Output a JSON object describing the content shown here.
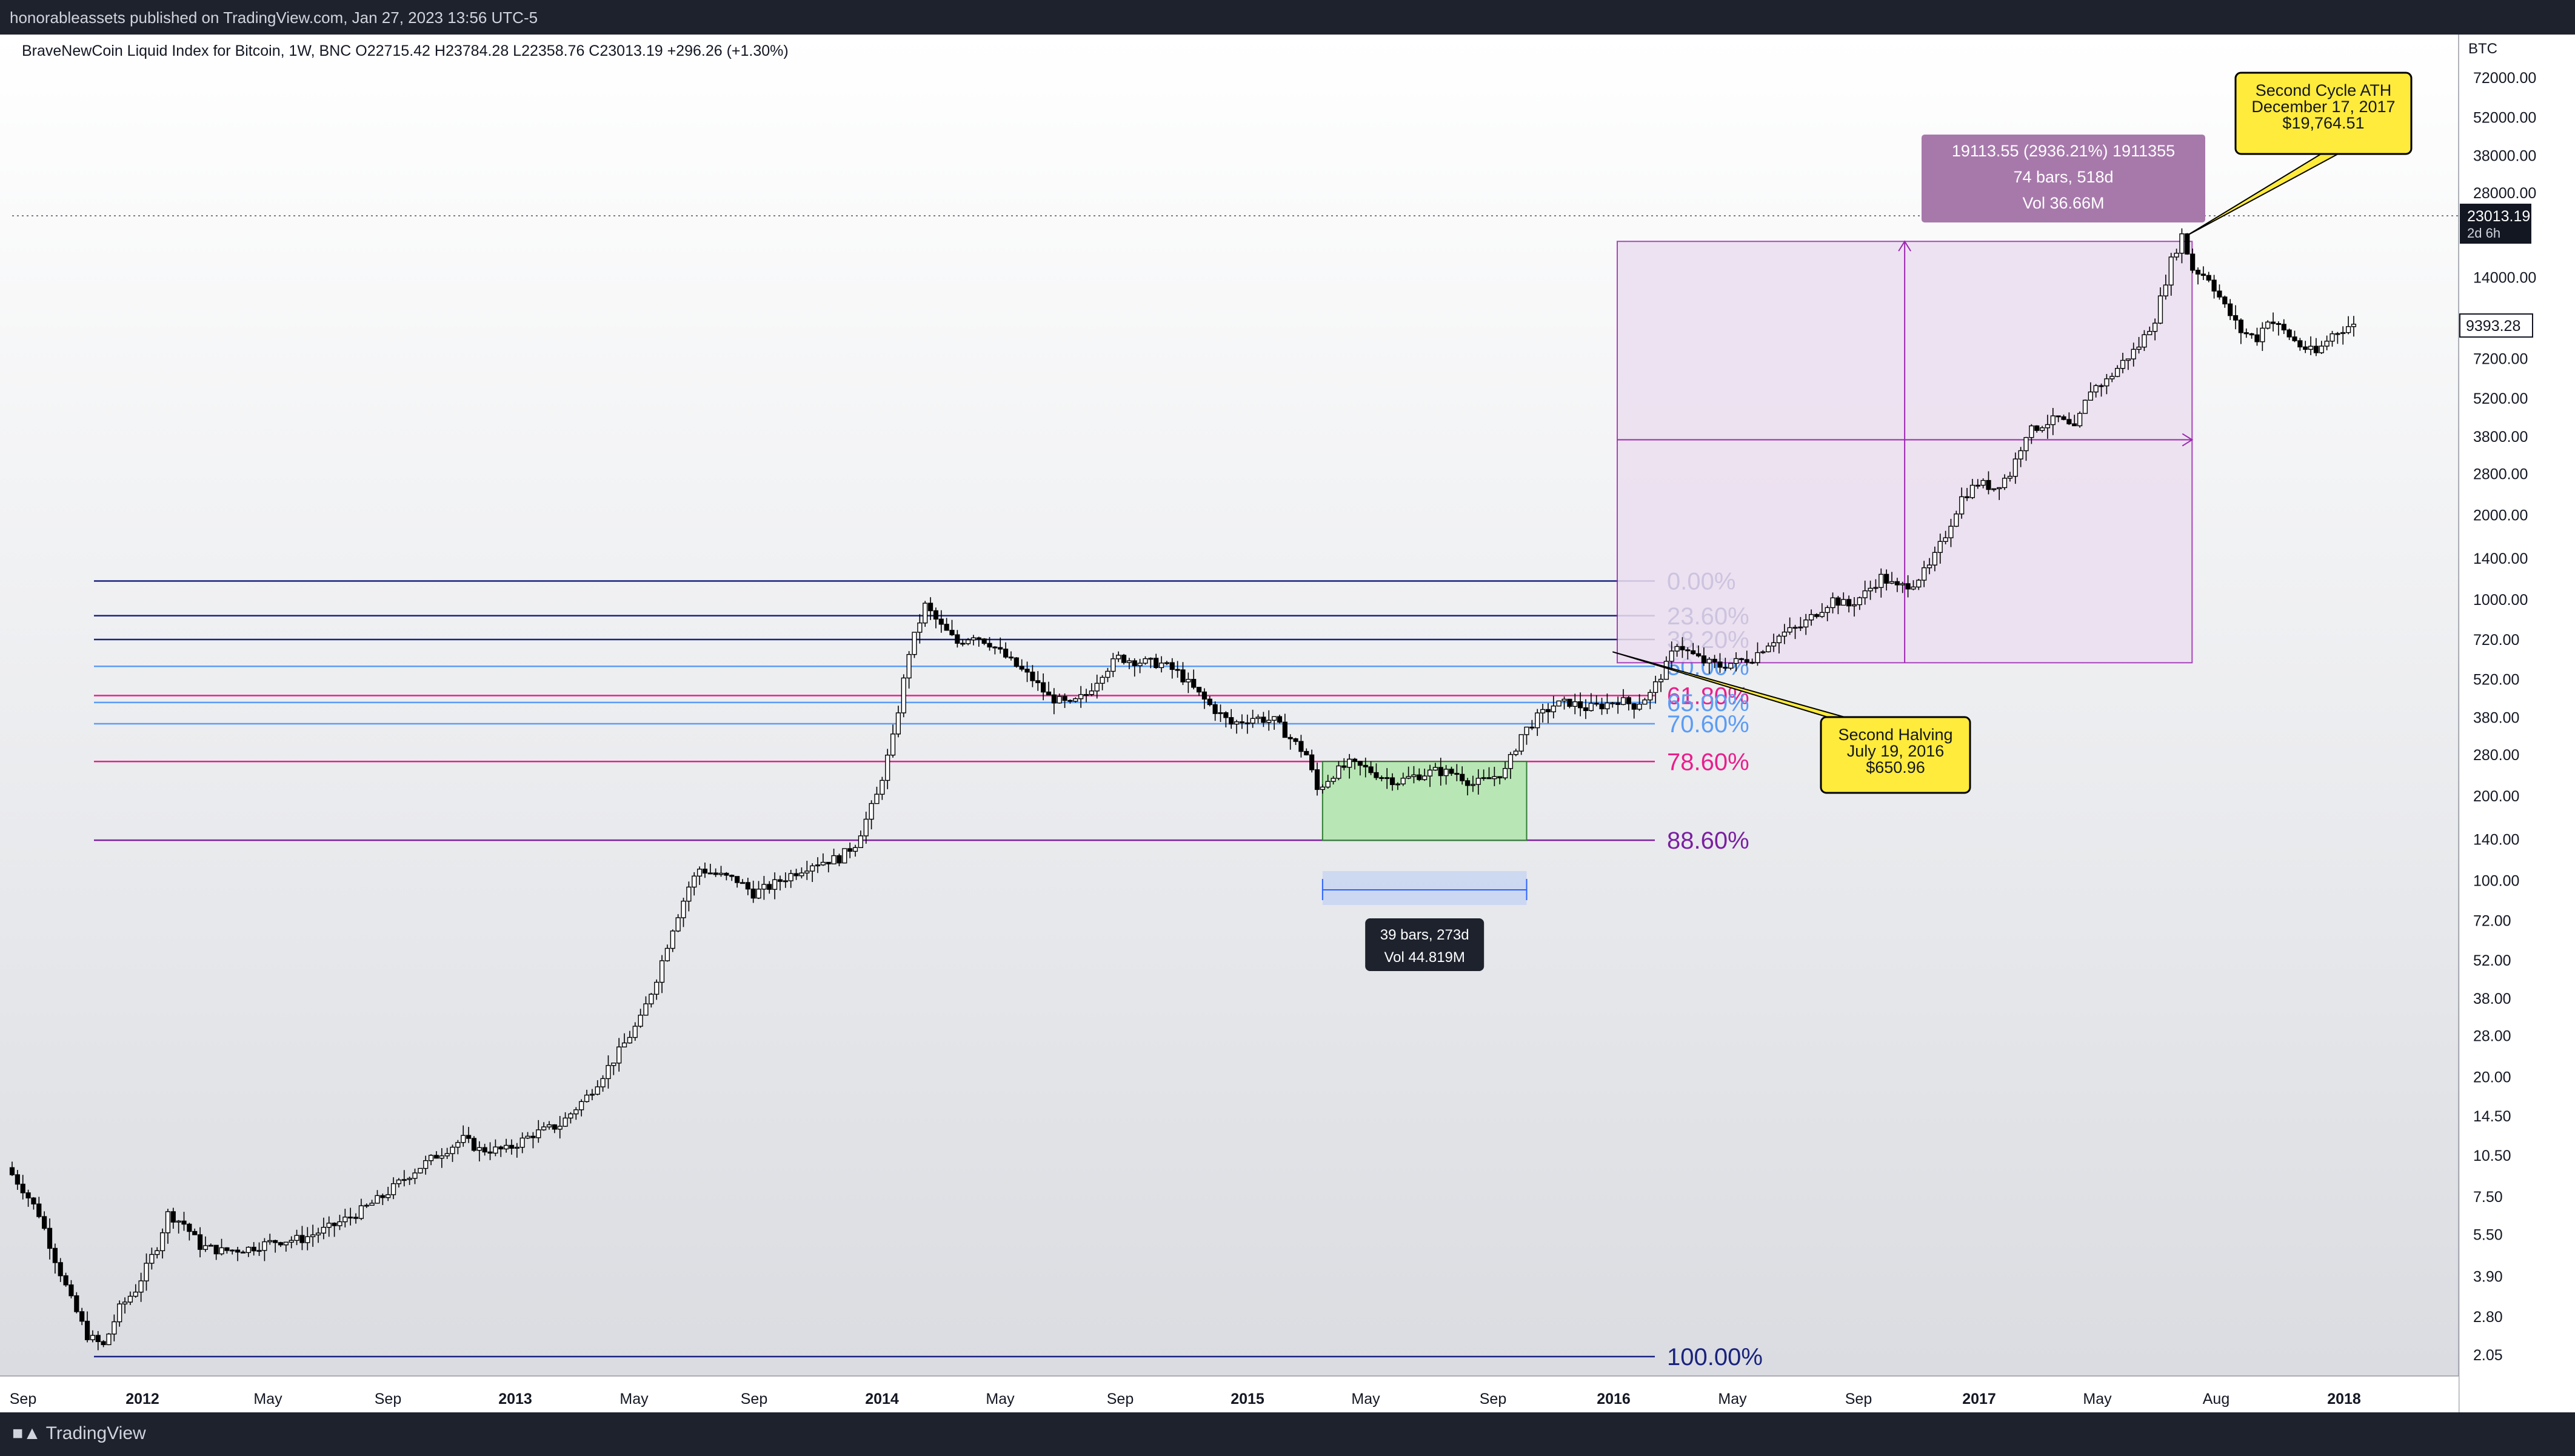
{
  "header": {
    "publisher_line": "honorableassets published on TradingView.com, Jan 27, 2023 13:56 UTC-5"
  },
  "legend": {
    "text": "BraveNewCoin Liquid Index for Bitcoin, 1W, BNC  O22715.42  H23784.28  L22358.76  C23013.19  +296.26 (+1.30%)"
  },
  "footer": {
    "brand": "TradingView"
  },
  "colors": {
    "fib_dark": "#1a237e",
    "fib_light": "#5b9cf6",
    "fib_pink": "#e91e8c",
    "fib_purple": "#7b1fa2",
    "range_fill": "#b9e6b5",
    "projection_fill": "#ecdff0"
  },
  "chart_data": {
    "type": "candlestick",
    "symbol": "BTC",
    "timeframe": "1W",
    "log_scale": true,
    "y_ticks": [
      "72000.00",
      "52000.00",
      "38000.00",
      "28000.00",
      "14000.00",
      "7200.00",
      "5200.00",
      "3800.00",
      "2800.00",
      "2000.00",
      "1400.00",
      "1000.00",
      "720.00",
      "520.00",
      "380.00",
      "280.00",
      "200.00",
      "140.00",
      "100.00",
      "72.00",
      "52.00",
      "38.00",
      "28.00",
      "20.00",
      "14.50",
      "10.50",
      "7.50",
      "5.50",
      "3.90",
      "2.80",
      "2.05"
    ],
    "y_tick_values": [
      72000,
      52000,
      38000,
      28000,
      14000,
      7200,
      5200,
      3800,
      2800,
      2000,
      1400,
      1000,
      720,
      520,
      380,
      280,
      200,
      140,
      100,
      72,
      52,
      38,
      28,
      20,
      14.5,
      10.5,
      7.5,
      5.5,
      3.9,
      2.8,
      2.05
    ],
    "y_axis_unit": "BTC",
    "x_ticks": [
      {
        "label": "Sep",
        "bold": false
      },
      {
        "label": "2012",
        "bold": true
      },
      {
        "label": "May",
        "bold": false
      },
      {
        "label": "Sep",
        "bold": false
      },
      {
        "label": "2013",
        "bold": true
      },
      {
        "label": "May",
        "bold": false
      },
      {
        "label": "Sep",
        "bold": false
      },
      {
        "label": "2014",
        "bold": true
      },
      {
        "label": "May",
        "bold": false
      },
      {
        "label": "Sep",
        "bold": false
      },
      {
        "label": "2015",
        "bold": true
      },
      {
        "label": "May",
        "bold": false
      },
      {
        "label": "Sep",
        "bold": false
      },
      {
        "label": "2016",
        "bold": true
      },
      {
        "label": "May",
        "bold": false
      },
      {
        "label": "Sep",
        "bold": false
      },
      {
        "label": "2017",
        "bold": true
      },
      {
        "label": "May",
        "bold": false
      },
      {
        "label": "Aug",
        "bold": false
      },
      {
        "label": "2018",
        "bold": true
      }
    ],
    "price_labels": {
      "last_price": "23013.19",
      "countdown": "2d 6h",
      "cursor_price": "9393.28"
    },
    "price_path": [
      [
        0,
        9.5
      ],
      [
        3,
        8
      ],
      [
        6,
        6.5
      ],
      [
        9,
        4.5
      ],
      [
        12,
        3.2
      ],
      [
        15,
        2.4
      ],
      [
        18,
        2.2
      ],
      [
        21,
        3
      ],
      [
        24,
        3.5
      ],
      [
        28,
        5
      ],
      [
        30,
        6.5
      ],
      [
        33,
        6
      ],
      [
        36,
        5
      ],
      [
        40,
        4.8
      ],
      [
        45,
        4.9
      ],
      [
        50,
        5.2
      ],
      [
        55,
        5.3
      ],
      [
        60,
        5.8
      ],
      [
        65,
        6.5
      ],
      [
        70,
        7.5
      ],
      [
        75,
        9
      ],
      [
        80,
        10.5
      ],
      [
        85,
        12
      ],
      [
        88,
        11
      ],
      [
        93,
        11
      ],
      [
        98,
        12.5
      ],
      [
        103,
        13.5
      ],
      [
        108,
        17
      ],
      [
        113,
        23
      ],
      [
        118,
        32
      ],
      [
        121,
        45
      ],
      [
        124,
        68
      ],
      [
        127,
        95
      ],
      [
        129,
        110
      ],
      [
        132,
        105
      ],
      [
        136,
        100
      ],
      [
        139,
        90
      ],
      [
        142,
        95
      ],
      [
        146,
        105
      ],
      [
        150,
        115
      ],
      [
        155,
        120
      ],
      [
        158,
        135
      ],
      [
        162,
        200
      ],
      [
        165,
        320
      ],
      [
        168,
        650
      ],
      [
        171,
        950
      ],
      [
        174,
        800
      ],
      [
        177,
        700
      ],
      [
        180,
        750
      ],
      [
        183,
        700
      ],
      [
        187,
        600
      ],
      [
        191,
        520
      ],
      [
        194,
        450
      ],
      [
        198,
        420
      ],
      [
        201,
        460
      ],
      [
        204,
        550
      ],
      [
        207,
        620
      ],
      [
        211,
        600
      ],
      [
        215,
        590
      ],
      [
        218,
        550
      ],
      [
        221,
        480
      ],
      [
        224,
        420
      ],
      [
        228,
        360
      ],
      [
        232,
        380
      ],
      [
        236,
        370
      ],
      [
        239,
        320
      ],
      [
        242,
        280
      ],
      [
        244,
        210
      ],
      [
        247,
        240
      ],
      [
        250,
        260
      ],
      [
        253,
        250
      ],
      [
        256,
        235
      ],
      [
        259,
        225
      ],
      [
        262,
        235
      ],
      [
        266,
        245
      ],
      [
        270,
        240
      ],
      [
        273,
        220
      ],
      [
        276,
        230
      ],
      [
        279,
        245
      ],
      [
        282,
        330
      ],
      [
        285,
        380
      ],
      [
        288,
        420
      ],
      [
        291,
        430
      ],
      [
        294,
        410
      ],
      [
        297,
        420
      ],
      [
        300,
        440
      ],
      [
        303,
        420
      ],
      [
        306,
        460
      ],
      [
        309,
        580
      ],
      [
        311,
        700
      ],
      [
        313,
        650
      ],
      [
        316,
        600
      ],
      [
        319,
        580
      ],
      [
        322,
        600
      ],
      [
        325,
        620
      ],
      [
        328,
        700
      ],
      [
        331,
        760
      ],
      [
        334,
        800
      ],
      [
        337,
        900
      ],
      [
        340,
        1000
      ],
      [
        343,
        950
      ],
      [
        346,
        1050
      ],
      [
        349,
        1200
      ],
      [
        352,
        1100
      ],
      [
        355,
        1150
      ],
      [
        358,
        1300
      ],
      [
        361,
        1700
      ],
      [
        364,
        2300
      ],
      [
        367,
        2600
      ],
      [
        370,
        2500
      ],
      [
        373,
        2800
      ],
      [
        376,
        3900
      ],
      [
        379,
        4200
      ],
      [
        382,
        4400
      ],
      [
        385,
        4000
      ],
      [
        388,
        5600
      ],
      [
        391,
        6000
      ],
      [
        394,
        7000
      ],
      [
        397,
        8000
      ],
      [
        400,
        10000
      ],
      [
        403,
        16000
      ],
      [
        405,
        19764
      ],
      [
        407,
        15000
      ],
      [
        410,
        14000
      ],
      [
        413,
        11000
      ],
      [
        416,
        9000
      ],
      [
        419,
        8500
      ],
      [
        421,
        10000
      ],
      [
        424,
        9000
      ],
      [
        427,
        8000
      ],
      [
        430,
        7500
      ],
      [
        433,
        8800
      ],
      [
        436,
        9393
      ]
    ],
    "fibonacci": {
      "levels": [
        {
          "label": "0.00%",
          "value": 1163,
          "color": "fib_dark"
        },
        {
          "label": "23.60%",
          "value": 875,
          "color": "fib_dark"
        },
        {
          "label": "38.20%",
          "value": 720,
          "color": "fib_dark"
        },
        {
          "label": "50.00%",
          "value": 578,
          "color": "fib_light"
        },
        {
          "label": "61.80%",
          "value": 455,
          "color": "fib_pink"
        },
        {
          "label": "65.00%",
          "value": 430,
          "color": "fib_light"
        },
        {
          "label": "70.60%",
          "value": 361,
          "color": "fib_light"
        },
        {
          "label": "78.60%",
          "value": 265,
          "color": "fib_pink"
        },
        {
          "label": "88.60%",
          "value": 139,
          "color": "fib_purple"
        },
        {
          "label": "100.00%",
          "value": 2.05,
          "color": "fib_dark"
        }
      ]
    },
    "range_box": {
      "from_week": 244,
      "to_week": 282,
      "high": 265,
      "low": 139
    },
    "date_range": {
      "bars_label": "39 bars, 273d",
      "vol_label": "Vol 44.819M"
    },
    "projection": {
      "from_week": 300,
      "to_week": 405,
      "low": 650.96,
      "high": 19764.51,
      "line1": "19113.55 (2936.21%) 1911355",
      "line2": "74 bars, 518d",
      "line3": "Vol 36.66M"
    },
    "callouts": [
      {
        "lines": [
          "Second Halving",
          "July 19, 2016",
          "$650.96"
        ],
        "week": 298,
        "price": 650.96
      },
      {
        "lines": [
          "Second Cycle ATH",
          "December 17, 2017",
          "$19,764.51"
        ],
        "week": 405,
        "price": 19764.51
      }
    ]
  }
}
